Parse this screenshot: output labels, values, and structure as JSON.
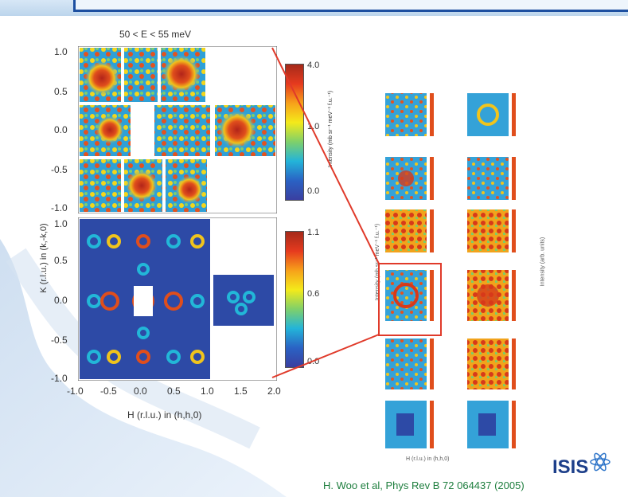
{
  "figure": {
    "title": "50 < E < 55 meV",
    "x_axis_label": "H (r.l.u.) in (h,h,0)",
    "y_axis_label": "K (r.l.u.) in (k,-k,0)",
    "x_ticks": [
      "-1.0",
      "-0.5",
      "0.0",
      "0.5",
      "1.0",
      "1.5",
      "2.0"
    ],
    "y_ticks_top": [
      "1.0",
      "0.5",
      "0.0",
      "-0.5",
      "-1.0"
    ],
    "y_ticks_bottom": [
      "1.0",
      "0.5",
      "0.0",
      "-0.5",
      "-1.0"
    ],
    "colorbar_top": {
      "max": "4.0",
      "mid": "1.0",
      "min": "0.0",
      "label": "Intensity (mb sr⁻¹ meV⁻¹ f.u.⁻¹)"
    },
    "colorbar_bottom": {
      "max": "1.1",
      "mid": "0.6",
      "min": "0.0",
      "label": "Intensity (arb. units)"
    }
  },
  "small_grid": {
    "bottom_label": "H (r.l.u.) in (h,h,0)",
    "right_label": "Intensity (arb. units)",
    "left_label": "Intensity (mb sr⁻¹ meV⁻¹ f.u.⁻¹)"
  },
  "citation": "H. Woo et al, Phys Rev B 72 064437 (2005)",
  "logo_text": "ISIS",
  "colors": {
    "accent": "#1d4fa0",
    "highlight": "#e03a2a",
    "citation": "#1e7e3e"
  }
}
